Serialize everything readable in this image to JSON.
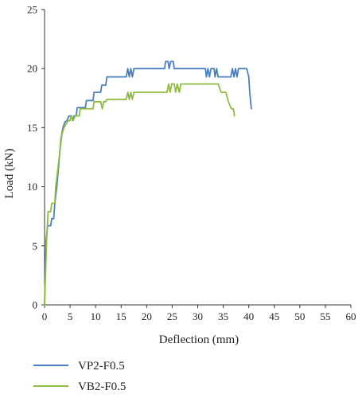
{
  "chart_data": {
    "type": "line",
    "xlabel": "Deflection (mm)",
    "ylabel": "Load (kN)",
    "xlim": [
      0,
      60
    ],
    "ylim": [
      0,
      25
    ],
    "x_ticks": [
      0,
      5,
      10,
      15,
      20,
      25,
      30,
      35,
      40,
      45,
      50,
      55,
      60
    ],
    "y_ticks": [
      0,
      5,
      10,
      15,
      20,
      25
    ],
    "grid": false,
    "legend_position": "bottom-left",
    "series": [
      {
        "name": "VP2-F0.5",
        "color": "#4a7fc1",
        "points": [
          [
            0,
            0
          ],
          [
            0.3,
            5.5
          ],
          [
            0.6,
            6.7
          ],
          [
            1.2,
            6.7
          ],
          [
            1.4,
            7.3
          ],
          [
            1.8,
            7.3
          ],
          [
            2.0,
            8.5
          ],
          [
            2.4,
            10.0
          ],
          [
            2.8,
            12.0
          ],
          [
            3.2,
            14.0
          ],
          [
            3.6,
            15.0
          ],
          [
            4.0,
            15.5
          ],
          [
            4.4,
            15.6
          ],
          [
            4.8,
            16.0
          ],
          [
            5.3,
            16.0
          ],
          [
            5.5,
            15.6
          ],
          [
            5.8,
            16.0
          ],
          [
            6.2,
            16.0
          ],
          [
            6.4,
            16.7
          ],
          [
            8.0,
            16.7
          ],
          [
            8.2,
            17.3
          ],
          [
            9.5,
            17.3
          ],
          [
            9.7,
            18.0
          ],
          [
            11.0,
            18.0
          ],
          [
            11.2,
            18.6
          ],
          [
            12.0,
            18.6
          ],
          [
            12.2,
            19.3
          ],
          [
            16.0,
            19.3
          ],
          [
            16.3,
            20.0
          ],
          [
            16.6,
            19.3
          ],
          [
            16.9,
            20.0
          ],
          [
            17.2,
            19.3
          ],
          [
            17.5,
            20.0
          ],
          [
            23.5,
            20.0
          ],
          [
            23.7,
            20.6
          ],
          [
            24.2,
            20.6
          ],
          [
            24.4,
            20.0
          ],
          [
            24.7,
            20.6
          ],
          [
            25.2,
            20.6
          ],
          [
            25.4,
            20.0
          ],
          [
            31.5,
            20.0
          ],
          [
            31.7,
            19.3
          ],
          [
            32.0,
            20.0
          ],
          [
            32.3,
            19.3
          ],
          [
            32.6,
            20.0
          ],
          [
            33.2,
            20.0
          ],
          [
            33.4,
            19.3
          ],
          [
            33.7,
            20.0
          ],
          [
            34.0,
            19.3
          ],
          [
            36.5,
            19.3
          ],
          [
            36.8,
            20.0
          ],
          [
            37.1,
            19.3
          ],
          [
            37.4,
            20.0
          ],
          [
            37.7,
            19.3
          ],
          [
            38.0,
            20.0
          ],
          [
            39.6,
            20.0
          ],
          [
            40.0,
            19.3
          ],
          [
            40.2,
            18.0
          ],
          [
            40.5,
            16.6
          ]
        ]
      },
      {
        "name": "VB2-F0.5",
        "color": "#8fbc3f",
        "points": [
          [
            0,
            0
          ],
          [
            0.4,
            5.5
          ],
          [
            0.7,
            7.9
          ],
          [
            1.2,
            7.9
          ],
          [
            1.4,
            8.6
          ],
          [
            2.0,
            8.6
          ],
          [
            2.2,
            10.0
          ],
          [
            2.6,
            11.5
          ],
          [
            3.0,
            13.0
          ],
          [
            3.4,
            14.4
          ],
          [
            3.8,
            15.0
          ],
          [
            4.2,
            15.3
          ],
          [
            4.6,
            15.6
          ],
          [
            5.0,
            15.6
          ],
          [
            5.2,
            16.0
          ],
          [
            5.6,
            15.6
          ],
          [
            6.0,
            16.0
          ],
          [
            6.8,
            16.0
          ],
          [
            7.0,
            16.6
          ],
          [
            9.5,
            16.6
          ],
          [
            9.7,
            17.2
          ],
          [
            11.0,
            17.2
          ],
          [
            11.3,
            16.6
          ],
          [
            11.6,
            17.2
          ],
          [
            12.0,
            17.2
          ],
          [
            12.2,
            17.4
          ],
          [
            16.0,
            17.4
          ],
          [
            16.3,
            18.0
          ],
          [
            16.6,
            17.4
          ],
          [
            16.9,
            18.0
          ],
          [
            17.2,
            17.4
          ],
          [
            17.5,
            18.0
          ],
          [
            24.0,
            18.0
          ],
          [
            24.3,
            18.7
          ],
          [
            24.6,
            18.0
          ],
          [
            24.9,
            18.7
          ],
          [
            25.4,
            18.7
          ],
          [
            25.7,
            18.0
          ],
          [
            26.0,
            18.7
          ],
          [
            26.4,
            18.0
          ],
          [
            26.7,
            18.7
          ],
          [
            34.0,
            18.7
          ],
          [
            34.6,
            18.0
          ],
          [
            35.5,
            18.0
          ],
          [
            36.0,
            17.2
          ],
          [
            36.6,
            16.6
          ],
          [
            37.0,
            16.6
          ],
          [
            37.2,
            16.0
          ]
        ]
      }
    ]
  }
}
